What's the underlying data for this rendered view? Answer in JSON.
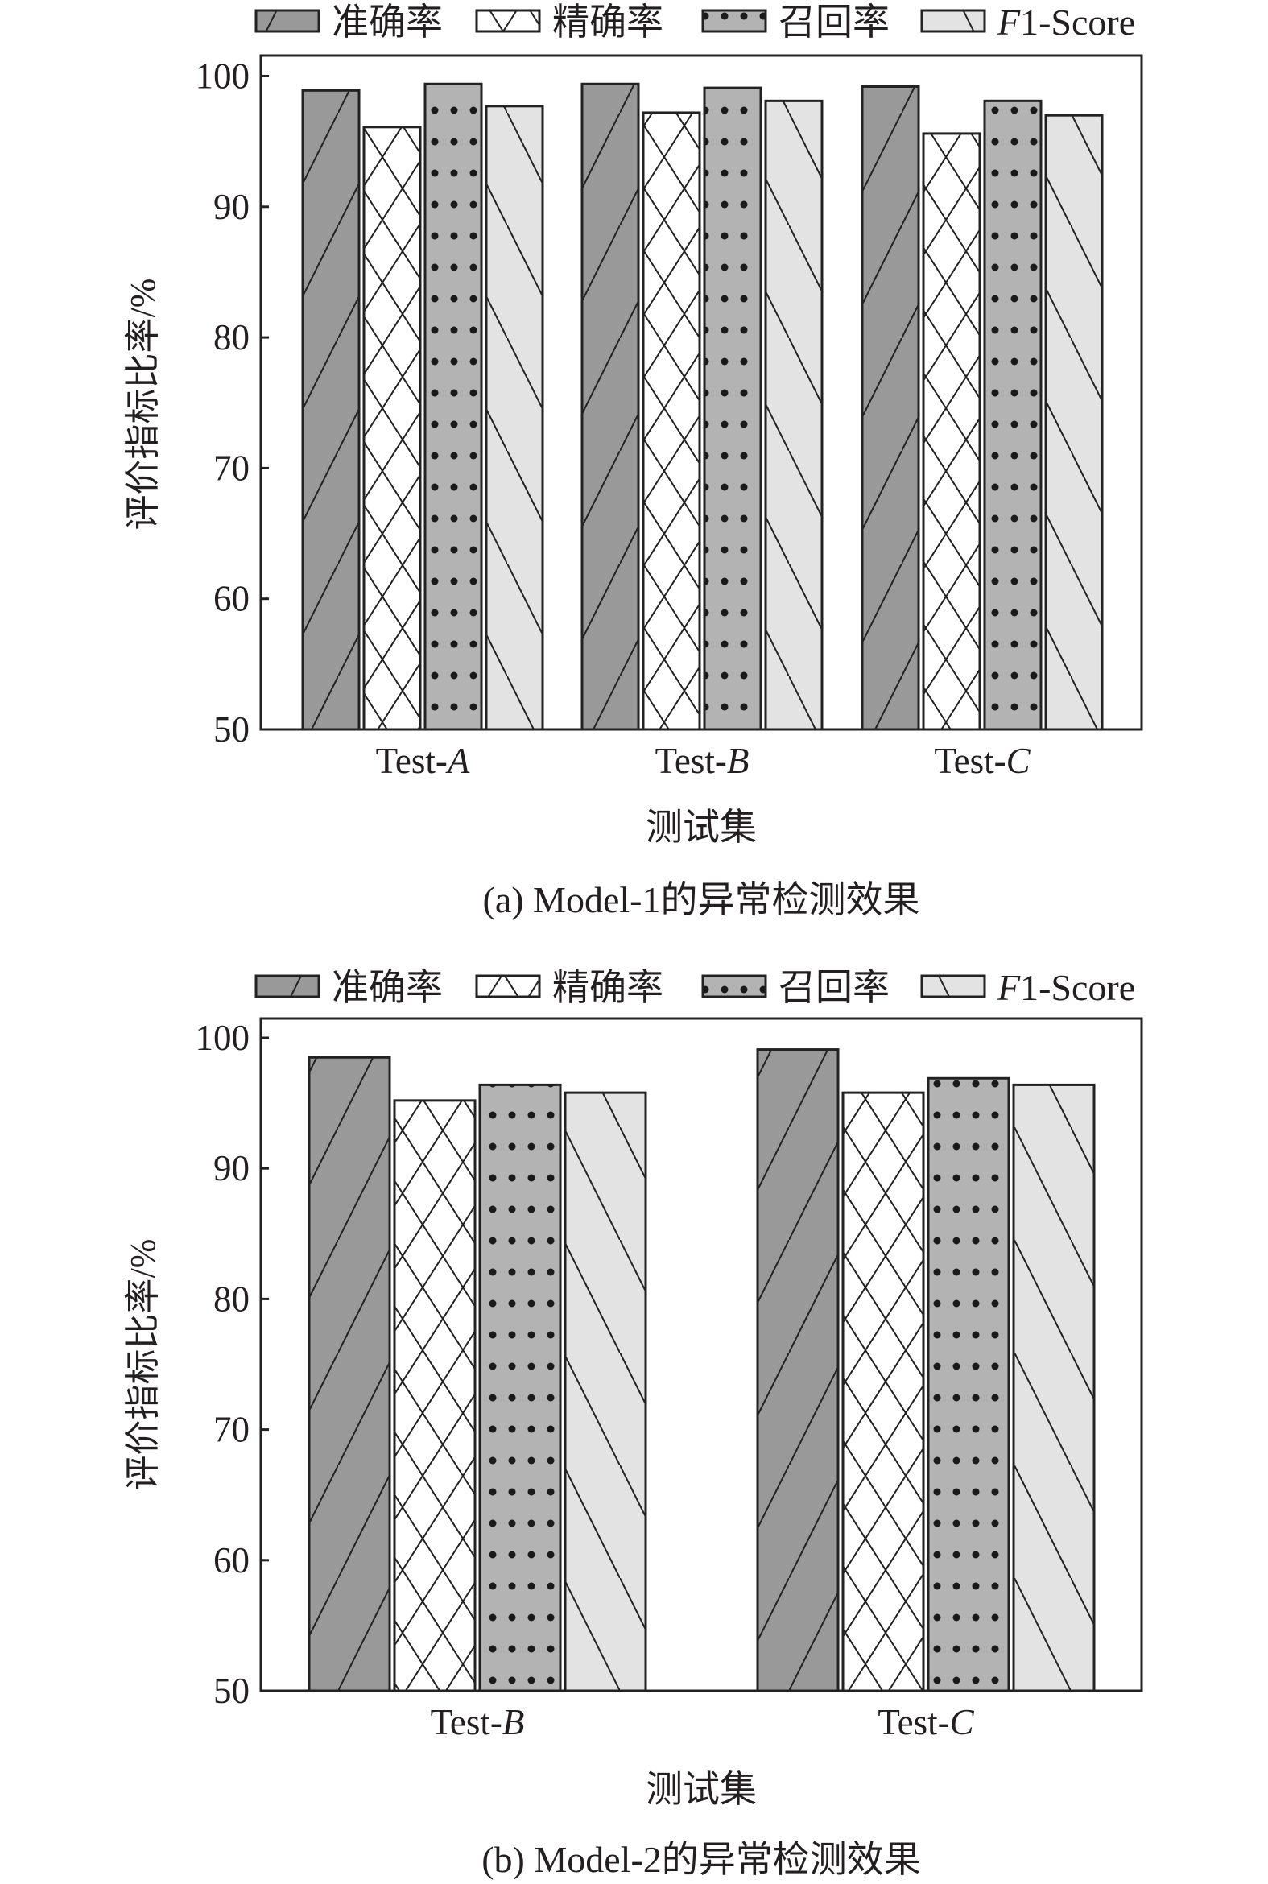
{
  "legend": [
    {
      "label": "准确率",
      "pattern": "diagonal-fwd",
      "color": "#999999"
    },
    {
      "label": "精确率",
      "pattern": "crosshatch",
      "color": "#ffffff"
    },
    {
      "label": "召回率",
      "pattern": "dots",
      "color": "#b3b3b3"
    },
    {
      "label": "F1-Score",
      "pattern": "diagonal-back",
      "color": "#e3e3e3"
    }
  ],
  "chart_data": [
    {
      "type": "bar",
      "title": "(a)  Model-1的异常检测效果",
      "xlabel": "测试集",
      "ylabel": "评价指标比率/%",
      "ylim": [
        50,
        100
      ],
      "yticks": [
        "50",
        "60",
        "70",
        "80",
        "90",
        "100"
      ],
      "categories": [
        "Test-A",
        "Test-B",
        "Test-C"
      ],
      "series": [
        {
          "name": "准确率",
          "values": [
            98.9,
            99.4,
            99.2
          ]
        },
        {
          "name": "精确率",
          "values": [
            96.1,
            97.2,
            95.6
          ]
        },
        {
          "name": "召回率",
          "values": [
            99.4,
            99.1,
            98.1
          ]
        },
        {
          "name": "F1-Score",
          "values": [
            97.7,
            98.1,
            97.0
          ]
        }
      ],
      "legend_position": "top"
    },
    {
      "type": "bar",
      "title": "(b)  Model-2的异常检测效果",
      "xlabel": "测试集",
      "ylabel": "评价指标比率/%",
      "ylim": [
        50,
        100
      ],
      "yticks": [
        "50",
        "60",
        "70",
        "80",
        "90",
        "100"
      ],
      "categories": [
        "Test-B",
        "Test-C"
      ],
      "series": [
        {
          "name": "准确率",
          "values": [
            98.5,
            99.1
          ]
        },
        {
          "name": "精确率",
          "values": [
            95.2,
            95.8
          ]
        },
        {
          "name": "召回率",
          "values": [
            96.4,
            96.9
          ]
        },
        {
          "name": "F1-Score",
          "values": [
            95.8,
            96.4
          ]
        }
      ],
      "legend_position": "top"
    }
  ]
}
